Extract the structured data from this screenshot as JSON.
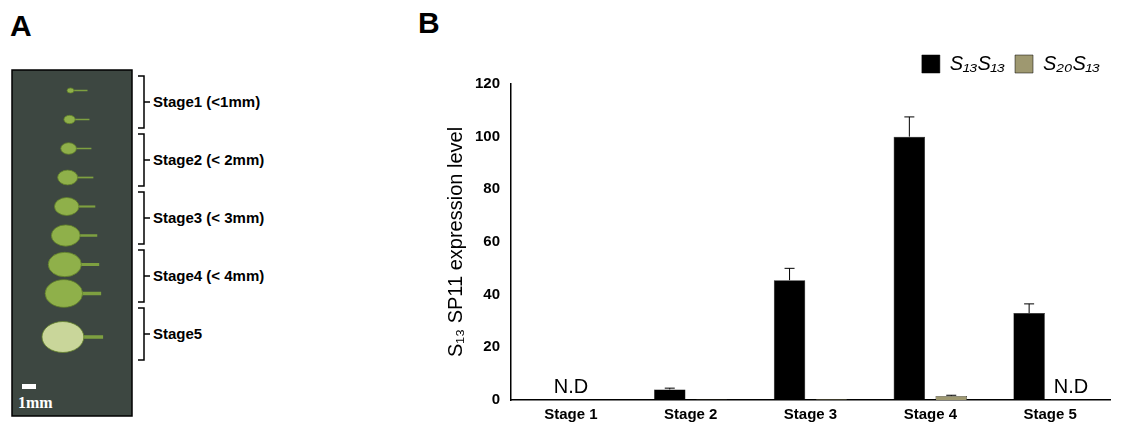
{
  "panel_a": {
    "letter": "A",
    "stages": [
      "Stage1 (<1mm)",
      "Stage2 (< 2mm)",
      "Stage3 (< 3mm)",
      "Stage4 (< 4mm)",
      "Stage5"
    ],
    "scale_bar": "1mm"
  },
  "chart_data": {
    "letter": "B",
    "type": "bar",
    "y_label": "S₁₃ SP11 expression level",
    "categories": [
      "Stage 1",
      "Stage 2",
      "Stage 3",
      "Stage 4",
      "Stage 5"
    ],
    "series": [
      {
        "name": "S₁₃S₁₃",
        "color": "#000000",
        "values": [
          null,
          4,
          45.5,
          100,
          33
        ],
        "errors": [
          null,
          0.5,
          4.5,
          7.5,
          3.5
        ]
      },
      {
        "name": "S₂₀S₁₃",
        "color": "#9e9870",
        "values": [
          null,
          0.2,
          0.3,
          1.5,
          null
        ],
        "errors": [
          null,
          null,
          null,
          0.3,
          null
        ]
      }
    ],
    "annotations": [
      {
        "text": "N.D",
        "category": "Stage 1"
      },
      {
        "text": "N.D",
        "category": "Stage 5",
        "series": "S₂₀S₁₃"
      }
    ],
    "ylim": [
      0,
      120
    ],
    "yticks": [
      0,
      20,
      40,
      60,
      80,
      100,
      120
    ],
    "grid": false,
    "legend": "top-right"
  }
}
